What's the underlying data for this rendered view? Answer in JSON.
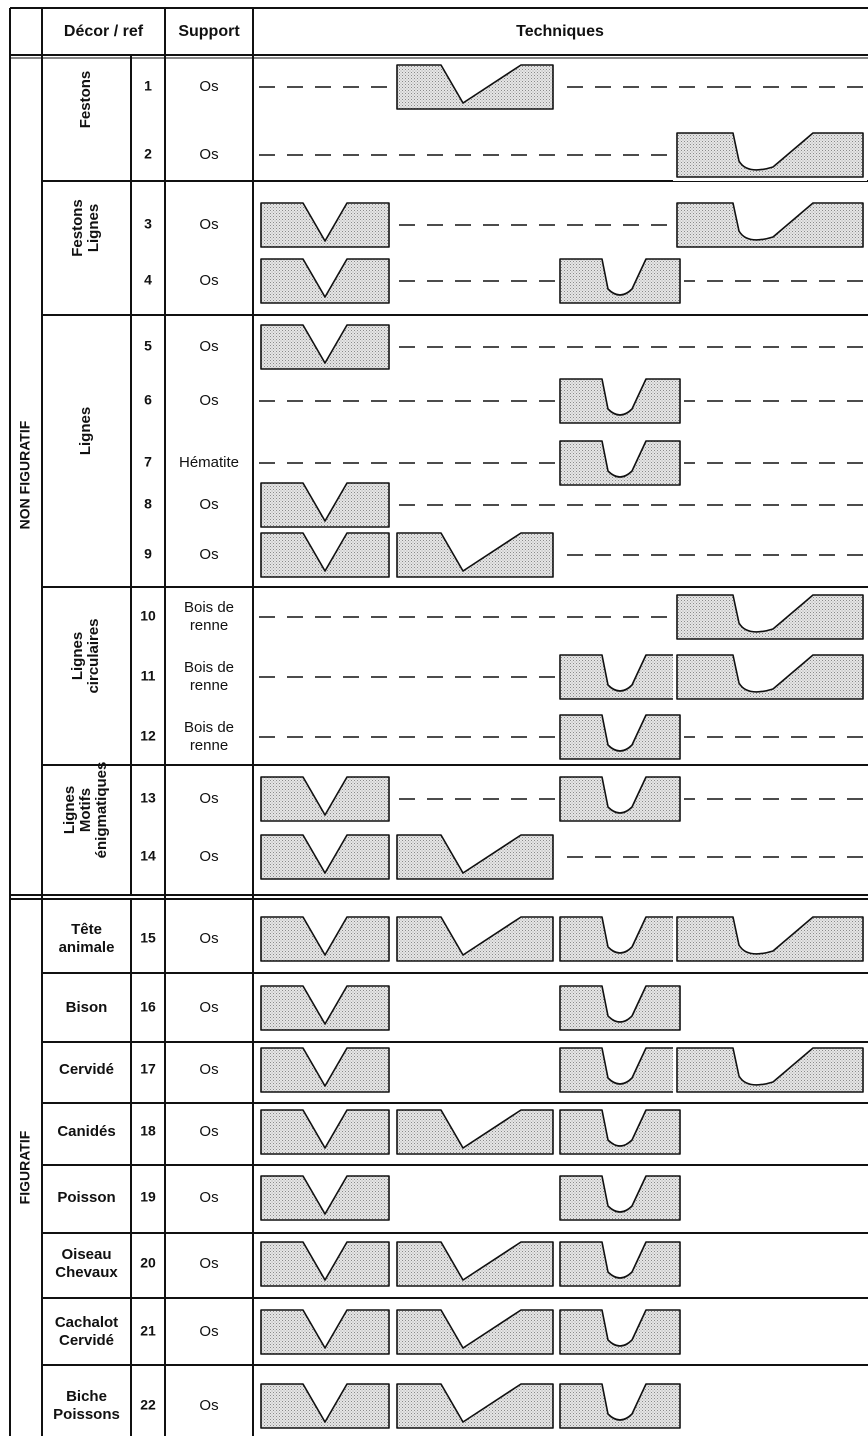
{
  "headers": {
    "decor_ref": "Décor / ref",
    "support": "Support",
    "techniques": "Techniques"
  },
  "categories": [
    "NON FIGURATIF",
    "FIGURATIF"
  ],
  "groups": [
    {
      "label": [
        "Festons"
      ]
    },
    {
      "label": [
        "Festons",
        "Lignes"
      ]
    },
    {
      "label": [
        "Lignes"
      ]
    },
    {
      "label": [
        "Lignes",
        "circulaires"
      ]
    },
    {
      "label": [
        "Lignes",
        "Motifs",
        "énigmatiques"
      ]
    }
  ],
  "rows": [
    {
      "ref": "1",
      "support": [
        "Os"
      ],
      "techniques": [
        "-",
        "B",
        "-",
        "-"
      ]
    },
    {
      "ref": "2",
      "support": [
        "Os"
      ],
      "techniques": [
        "-",
        "-",
        "-",
        "D"
      ]
    },
    {
      "ref": "3",
      "support": [
        "Os"
      ],
      "techniques": [
        "A",
        "-",
        "-",
        "D"
      ]
    },
    {
      "ref": "4",
      "support": [
        "Os"
      ],
      "techniques": [
        "A",
        "-",
        "C",
        "-"
      ]
    },
    {
      "ref": "5",
      "support": [
        "Os"
      ],
      "techniques": [
        "A",
        "-",
        "-",
        "-"
      ]
    },
    {
      "ref": "6",
      "support": [
        "Os"
      ],
      "techniques": [
        "-",
        "-",
        "C",
        "-"
      ]
    },
    {
      "ref": "7",
      "support": [
        "Hématite"
      ],
      "techniques": [
        "-",
        "-",
        "C",
        "-"
      ]
    },
    {
      "ref": "8",
      "support": [
        "Os"
      ],
      "techniques": [
        "A",
        "-",
        "-",
        "-"
      ]
    },
    {
      "ref": "9",
      "support": [
        "Os"
      ],
      "techniques": [
        "A",
        "B",
        "-",
        "-"
      ]
    },
    {
      "ref": "10",
      "support": [
        "Bois de",
        "renne"
      ],
      "techniques": [
        "-",
        "-",
        "-",
        "D"
      ]
    },
    {
      "ref": "11",
      "support": [
        "Bois de",
        "renne"
      ],
      "techniques": [
        "-",
        "-",
        "C",
        "D"
      ]
    },
    {
      "ref": "12",
      "support": [
        "Bois de",
        "renne"
      ],
      "techniques": [
        "-",
        "-",
        "C",
        "-"
      ]
    },
    {
      "ref": "13",
      "support": [
        "Os"
      ],
      "techniques": [
        "A",
        "-",
        "C",
        "-"
      ]
    },
    {
      "ref": "14",
      "support": [
        "Os"
      ],
      "techniques": [
        "A",
        "B",
        "-",
        "-"
      ]
    },
    {
      "ref": "15",
      "decor": [
        "Tête",
        "animale"
      ],
      "support": [
        "Os"
      ],
      "techniques": [
        "A",
        "B",
        "C",
        "D"
      ]
    },
    {
      "ref": "16",
      "decor": [
        "Bison"
      ],
      "support": [
        "Os"
      ],
      "techniques": [
        "A",
        "",
        "C",
        ""
      ]
    },
    {
      "ref": "17",
      "decor": [
        "Cervidé"
      ],
      "support": [
        "Os"
      ],
      "techniques": [
        "A",
        "",
        "C",
        "D"
      ]
    },
    {
      "ref": "18",
      "decor": [
        "Canidés"
      ],
      "support": [
        "Os"
      ],
      "techniques": [
        "A",
        "B",
        "C",
        ""
      ]
    },
    {
      "ref": "19",
      "decor": [
        "Poisson"
      ],
      "support": [
        "Os"
      ],
      "techniques": [
        "A",
        "",
        "C",
        ""
      ]
    },
    {
      "ref": "20",
      "decor": [
        "Oiseau",
        "Chevaux"
      ],
      "support": [
        "Os"
      ],
      "techniques": [
        "A",
        "B",
        "C",
        ""
      ]
    },
    {
      "ref": "21",
      "decor": [
        "Cachalot",
        "Cervidé"
      ],
      "support": [
        "Os"
      ],
      "techniques": [
        "A",
        "B",
        "C",
        ""
      ]
    },
    {
      "ref": "22",
      "decor": [
        "Biche",
        "Poissons"
      ],
      "support": [
        "Os"
      ],
      "techniques": [
        "A",
        "B",
        "C",
        ""
      ]
    }
  ],
  "technique_legend": {
    "A": "v-shaped-groove-icon",
    "B": "asymmetric-groove-icon",
    "C": "u-shaped-groove-icon",
    "D": "wide-curved-groove-icon",
    "-": "dashed-connector",
    "": "empty"
  },
  "colors": {
    "ink": "#111111",
    "fill": "#d9d9d9",
    "background": "#ffffff"
  }
}
